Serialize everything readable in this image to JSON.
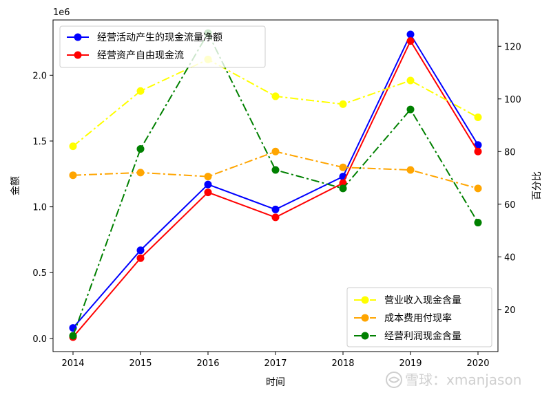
{
  "chart_data": {
    "type": "line",
    "x": [
      "2014",
      "2015",
      "2016",
      "2017",
      "2018",
      "2019",
      "2020"
    ],
    "xlabel": "时间",
    "ylabel_left": "金额",
    "ylabel_right": "百分比",
    "left_scale_label": "1e6",
    "ylim_left": [
      -0.1,
      2.42
    ],
    "ylim_right": [
      4,
      130
    ],
    "yticks_left": [
      "0.0",
      "0.5",
      "1.0",
      "1.5",
      "2.0"
    ],
    "yticks_right": [
      "20",
      "40",
      "60",
      "80",
      "100",
      "120"
    ],
    "left_series": [
      {
        "name": "经营活动产生的现金流量净额",
        "color": "#0000ff",
        "linestyle": "solid",
        "values": [
          0.08,
          0.67,
          1.17,
          0.98,
          1.23,
          2.31,
          1.47
        ]
      },
      {
        "name": "经营资产自由现金流",
        "color": "#ff0000",
        "linestyle": "solid",
        "values": [
          0.01,
          0.61,
          1.11,
          0.92,
          1.18,
          2.26,
          1.42
        ]
      }
    ],
    "right_series": [
      {
        "name": "营业收入现金含量",
        "color": "#ffff00",
        "linestyle": "dashdot",
        "values": [
          82,
          103,
          115,
          101,
          98,
          107,
          93
        ]
      },
      {
        "name": "成本费用付现率",
        "color": "#ffa500",
        "linestyle": "dashdot",
        "values": [
          71,
          72,
          70.5,
          80,
          74,
          73,
          66
        ]
      },
      {
        "name": "经营利润现金含量",
        "color": "#008000",
        "linestyle": "dashdot",
        "values": [
          10,
          81,
          125,
          73,
          66,
          96,
          53
        ]
      }
    ],
    "legend_left_position": "upper-left",
    "legend_right_position": "lower-right",
    "grid": false
  },
  "watermark": {
    "text": "雪球：xmanjason",
    "icon": "xueqiu-snowball-icon"
  }
}
